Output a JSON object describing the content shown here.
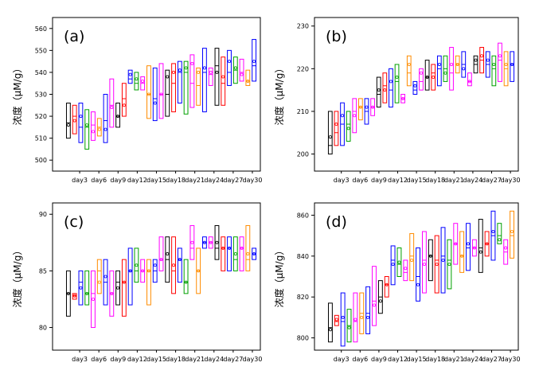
{
  "chart_data": [
    {
      "type": "box",
      "panel_label": "(a)",
      "ylabel": "浓度（μM/g）",
      "ylim": [
        495,
        565
      ],
      "yticks": [
        500,
        510,
        520,
        530,
        540,
        550,
        560
      ],
      "xtick_labels": [
        "day3",
        "day6",
        "day9",
        "day12",
        "day15",
        "day18",
        "day21",
        "day24",
        "day27",
        "day30"
      ],
      "series_colors": [
        "#000000",
        "#ff0000",
        "#0000ff",
        "#00a000",
        "#ff00ff",
        "#ff8c00",
        "#0000ff",
        "#ff00ff"
      ],
      "boxes": [
        {
          "low": 510,
          "high": 526,
          "median": 517,
          "mean": 516
        },
        {
          "low": 512,
          "high": 525,
          "median": 520,
          "mean": 518
        },
        {
          "low": 508,
          "high": 526,
          "median": 515,
          "mean": 520
        },
        {
          "low": 505,
          "high": 523,
          "median": 515,
          "mean": 516
        },
        {
          "low": 509,
          "high": 522,
          "median": 516,
          "mean": 513
        },
        {
          "low": 511,
          "high": 519,
          "median": 515,
          "mean": 514
        },
        {
          "low": 508,
          "high": 530,
          "median": 518,
          "mean": 514
        },
        {
          "low": 515,
          "high": 537,
          "median": 525,
          "mean": 524
        },
        {
          "low": 515,
          "high": 526,
          "median": 520,
          "mean": 520
        },
        {
          "low": 520,
          "high": 535,
          "median": 528,
          "mean": 525
        },
        {
          "low": 535,
          "high": 541,
          "median": 537,
          "mean": 539
        },
        {
          "low": 532,
          "high": 540,
          "median": 535,
          "mean": 537
        },
        {
          "low": 532,
          "high": 538,
          "median": 535,
          "mean": 536
        },
        {
          "low": 519,
          "high": 543,
          "median": 530,
          "mean": 530
        },
        {
          "low": 518,
          "high": 542,
          "median": 528,
          "mean": 526
        },
        {
          "low": 519,
          "high": 544,
          "median": 530,
          "mean": 530
        },
        {
          "low": 520,
          "high": 541,
          "median": 530,
          "mean": 538
        },
        {
          "low": 522,
          "high": 544,
          "median": 535,
          "mean": 540
        },
        {
          "low": 526,
          "high": 545,
          "median": 540,
          "mean": 541
        },
        {
          "low": 521,
          "high": 545,
          "median": 540,
          "mean": 542
        },
        {
          "low": 524,
          "high": 548,
          "median": 535,
          "mean": 544
        },
        {
          "low": 525,
          "high": 542,
          "median": 534,
          "mean": 540
        },
        {
          "low": 522,
          "high": 551,
          "median": 540,
          "mean": 542
        },
        {
          "low": 534,
          "high": 542,
          "median": 539,
          "mean": 540
        },
        {
          "low": 525,
          "high": 551,
          "median": 543,
          "mean": 540
        },
        {
          "low": 525,
          "high": 547,
          "median": 535,
          "mean": 538
        },
        {
          "low": 534,
          "high": 550,
          "median": 540,
          "mean": 545
        },
        {
          "low": 535,
          "high": 547,
          "median": 541,
          "mean": 542
        },
        {
          "low": 536,
          "high": 546,
          "median": 540,
          "mean": 539
        },
        {
          "low": 534,
          "high": 541,
          "median": 536,
          "mean": 536
        },
        {
          "low": 536,
          "high": 555,
          "median": 543,
          "mean": 545
        }
      ]
    },
    {
      "type": "box",
      "panel_label": "(b)",
      "ylabel": "浓度（μM/g）",
      "ylim": [
        196,
        232
      ],
      "yticks": [
        200,
        210,
        220,
        230
      ],
      "xtick_labels": [
        "day3",
        "day6",
        "day9",
        "day12",
        "day15",
        "day18",
        "day21",
        "day24",
        "day27",
        "day30"
      ],
      "series_colors": [
        "#000000",
        "#ff0000",
        "#0000ff",
        "#00a000",
        "#ff00ff",
        "#ff8c00",
        "#0000ff",
        "#ff00ff"
      ],
      "boxes": [
        {
          "low": 200,
          "high": 210,
          "median": 202,
          "mean": 204
        },
        {
          "low": 202,
          "high": 210,
          "median": 205,
          "mean": 207
        },
        {
          "low": 202,
          "high": 212,
          "median": 207,
          "mean": 209
        },
        {
          "low": 203,
          "high": 210,
          "median": 207,
          "mean": 206
        },
        {
          "low": 205,
          "high": 213,
          "median": 210,
          "mean": 209
        },
        {
          "low": 208,
          "high": 213,
          "median": 211,
          "mean": 211
        },
        {
          "low": 207,
          "high": 213,
          "median": 210,
          "mean": 211
        },
        {
          "low": 209,
          "high": 213,
          "median": 211,
          "mean": 211
        },
        {
          "low": 211,
          "high": 218,
          "median": 214,
          "mean": 215
        },
        {
          "low": 212,
          "high": 219,
          "median": 216,
          "mean": 215
        },
        {
          "low": 211,
          "high": 220,
          "median": 215,
          "mean": 217
        },
        {
          "low": 212,
          "high": 221,
          "median": 217,
          "mean": 218
        },
        {
          "low": 212,
          "high": 214,
          "median": 213,
          "mean": 213
        },
        {
          "low": 216,
          "high": 223,
          "median": 219,
          "mean": 221
        },
        {
          "low": 214,
          "high": 217,
          "median": 215,
          "mean": 216
        },
        {
          "low": 215,
          "high": 220,
          "median": 217,
          "mean": 219
        },
        {
          "low": 215,
          "high": 222,
          "median": 218,
          "mean": 218
        },
        {
          "low": 215,
          "high": 221,
          "median": 219,
          "mean": 218
        },
        {
          "low": 216,
          "high": 223,
          "median": 220,
          "mean": 221
        },
        {
          "low": 217,
          "high": 223,
          "median": 220,
          "mean": 219
        },
        {
          "low": 215,
          "high": 225,
          "median": 219,
          "mean": 221
        },
        {
          "low": 219,
          "high": 223,
          "median": 221,
          "mean": 221
        },
        {
          "low": 218,
          "high": 224,
          "median": 221,
          "mean": 220
        },
        {
          "low": 216,
          "high": 219,
          "median": 217,
          "mean": 217
        },
        {
          "low": 219,
          "high": 223,
          "median": 221,
          "mean": 222
        },
        {
          "low": 219,
          "high": 225,
          "median": 222,
          "mean": 223
        },
        {
          "low": 218,
          "high": 224,
          "median": 221,
          "mean": 222
        },
        {
          "low": 216,
          "high": 223,
          "median": 220,
          "mean": 221
        },
        {
          "low": 217,
          "high": 226,
          "median": 222,
          "mean": 223
        },
        {
          "low": 216,
          "high": 224,
          "median": 220,
          "mean": 221
        },
        {
          "low": 217,
          "high": 224,
          "median": 221,
          "mean": 221
        }
      ]
    },
    {
      "type": "box",
      "panel_label": "(c)",
      "ylabel": "浓度（μM/g）",
      "ylim": [
        78,
        91
      ],
      "yticks": [
        80,
        85,
        90
      ],
      "xtick_labels": [
        "day3",
        "day6",
        "day9",
        "day12",
        "day15",
        "day18",
        "day21",
        "day24",
        "day27",
        "day30"
      ],
      "series_colors": [
        "#000000",
        "#ff0000",
        "#0000ff",
        "#00a000",
        "#ff00ff",
        "#ff8c00",
        "#0000ff",
        "#ff00ff"
      ],
      "boxes": [
        {
          "low": 81,
          "high": 85,
          "median": 83,
          "mean": 83
        },
        {
          "low": 82.5,
          "high": 83,
          "median": 82.8,
          "mean": 82.8
        },
        {
          "low": 82,
          "high": 85,
          "median": 84,
          "mean": 83.5
        },
        {
          "low": 82,
          "high": 85,
          "median": 83,
          "mean": 83
        },
        {
          "low": 80,
          "high": 85,
          "median": 83,
          "mean": 82.5
        },
        {
          "low": 83,
          "high": 86,
          "median": 85,
          "mean": 84
        },
        {
          "low": 82,
          "high": 86,
          "median": 84,
          "mean": 84.5
        },
        {
          "low": 81,
          "high": 85,
          "median": 83,
          "mean": 83
        },
        {
          "low": 82,
          "high": 85,
          "median": 84,
          "mean": 83.5
        },
        {
          "low": 81,
          "high": 86,
          "median": 84,
          "mean": 84
        },
        {
          "low": 82,
          "high": 87,
          "median": 85,
          "mean": 85
        },
        {
          "low": 84,
          "high": 87,
          "median": 85,
          "mean": 85.5
        },
        {
          "low": 84,
          "high": 86,
          "median": 85,
          "mean": 85
        },
        {
          "low": 82,
          "high": 86,
          "median": 85,
          "mean": 85
        },
        {
          "low": 84,
          "high": 86,
          "median": 85,
          "mean": 85.5
        },
        {
          "low": 85,
          "high": 88,
          "median": 86,
          "mean": 86
        },
        {
          "low": 84,
          "high": 88,
          "median": 86,
          "mean": 86.5
        },
        {
          "low": 83,
          "high": 88,
          "median": 85,
          "mean": 85.5
        },
        {
          "low": 84,
          "high": 87,
          "median": 86,
          "mean": 86
        },
        {
          "low": 83,
          "high": 86,
          "median": 84,
          "mean": 84
        },
        {
          "low": 86,
          "high": 89,
          "median": 87,
          "mean": 87.5
        },
        {
          "low": 83,
          "high": 87,
          "median": 85,
          "mean": 85
        },
        {
          "low": 87,
          "high": 88,
          "median": 87.5,
          "mean": 87.5
        },
        {
          "low": 87,
          "high": 88,
          "median": 87.5,
          "mean": 87.5
        },
        {
          "low": 86,
          "high": 89,
          "median": 87,
          "mean": 87.5
        },
        {
          "low": 85,
          "high": 88,
          "median": 87,
          "mean": 87
        },
        {
          "low": 85,
          "high": 88,
          "median": 87,
          "mean": 87
        },
        {
          "low": 85,
          "high": 88,
          "median": 86,
          "mean": 86.5
        },
        {
          "low": 85,
          "high": 88,
          "median": 87,
          "mean": 87
        },
        {
          "low": 85,
          "high": 89,
          "median": 86,
          "mean": 86.5
        },
        {
          "low": 86,
          "high": 87,
          "median": 86.5,
          "mean": 86.5
        }
      ]
    },
    {
      "type": "box",
      "panel_label": "(d)",
      "ylabel": "浓度（μM/g）",
      "ylim": [
        794,
        866
      ],
      "yticks": [
        800,
        820,
        840,
        860
      ],
      "xtick_labels": [
        "day3",
        "day6",
        "day9",
        "day12",
        "day15",
        "day18",
        "day21",
        "day24",
        "day27",
        "day30"
      ],
      "series_colors": [
        "#000000",
        "#ff0000",
        "#0000ff",
        "#00a000",
        "#ff00ff",
        "#ff8c00",
        "#0000ff",
        "#ff00ff"
      ],
      "boxes": [
        {
          "low": 798,
          "high": 817,
          "median": 805,
          "mean": 804
        },
        {
          "low": 806,
          "high": 811,
          "median": 808,
          "mean": 809
        },
        {
          "low": 796,
          "high": 822,
          "median": 808,
          "mean": 810
        },
        {
          "low": 798,
          "high": 814,
          "median": 806,
          "mean": 805
        },
        {
          "low": 798,
          "high": 822,
          "median": 808,
          "mean": 809
        },
        {
          "low": 802,
          "high": 822,
          "median": 812,
          "mean": 810
        },
        {
          "low": 802,
          "high": 825,
          "median": 812,
          "mean": 810
        },
        {
          "low": 806,
          "high": 835,
          "median": 818,
          "mean": 816
        },
        {
          "low": 812,
          "high": 828,
          "median": 820,
          "mean": 818
        },
        {
          "low": 820,
          "high": 830,
          "median": 826,
          "mean": 826
        },
        {
          "low": 826,
          "high": 845,
          "median": 838,
          "mean": 836
        },
        {
          "low": 830,
          "high": 844,
          "median": 836,
          "mean": 837
        },
        {
          "low": 828,
          "high": 838,
          "median": 832,
          "mean": 834
        },
        {
          "low": 828,
          "high": 851,
          "median": 840,
          "mean": 838
        },
        {
          "low": 818,
          "high": 844,
          "median": 830,
          "mean": 826
        },
        {
          "low": 822,
          "high": 852,
          "median": 838,
          "mean": 836
        },
        {
          "low": 828,
          "high": 848,
          "median": 840,
          "mean": 840
        },
        {
          "low": 822,
          "high": 850,
          "median": 838,
          "mean": 836
        },
        {
          "low": 822,
          "high": 854,
          "median": 840,
          "mean": 838
        },
        {
          "low": 824,
          "high": 848,
          "median": 838,
          "mean": 836
        },
        {
          "low": 836,
          "high": 856,
          "median": 846,
          "mean": 846
        },
        {
          "low": 832,
          "high": 852,
          "median": 840,
          "mean": 840
        },
        {
          "low": 833,
          "high": 856,
          "median": 844,
          "mean": 846
        },
        {
          "low": 840,
          "high": 848,
          "median": 844,
          "mean": 844
        },
        {
          "low": 832,
          "high": 858,
          "median": 844,
          "mean": 842
        },
        {
          "low": 840,
          "high": 852,
          "median": 846,
          "mean": 846
        },
        {
          "low": 838,
          "high": 862,
          "median": 850,
          "mean": 852
        },
        {
          "low": 846,
          "high": 856,
          "median": 850,
          "mean": 848
        },
        {
          "low": 836,
          "high": 848,
          "median": 842,
          "mean": 844
        },
        {
          "low": 839,
          "high": 862,
          "median": 850,
          "mean": 852
        }
      ]
    }
  ]
}
